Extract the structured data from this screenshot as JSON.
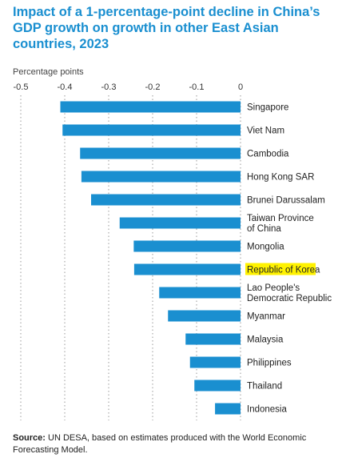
{
  "title": "Impact of a 1-percentage-point decline in China’s GDP growth on growth in other East Asian countries, 2023",
  "source_label": "Source:",
  "source_text": "UN DESA, based on estimates produced with the World Economic Forecasting Model.",
  "colors": {
    "bar": "#1a8fd0",
    "title": "#1a8fd0",
    "highlight": "#fff200"
  },
  "chart_data": {
    "type": "bar",
    "orientation": "horizontal",
    "title": "Impact of a 1-percentage-point decline in China’s GDP growth on growth in other East Asian countries, 2023",
    "xlabel": "Percentage points",
    "ylabel": "",
    "xlim": [
      -0.5,
      0
    ],
    "x_ticks": [
      -0.5,
      -0.4,
      -0.3,
      -0.2,
      -0.1,
      0
    ],
    "x_tick_labels": [
      "-0.5",
      "-0.4",
      "-0.3",
      "-0.2",
      "-0.1",
      "0"
    ],
    "grid": "vertical dotted",
    "highlighted_category": "Republic of Korea",
    "categories": [
      [
        "Singapore"
      ],
      [
        "Viet Nam"
      ],
      [
        "Cambodia"
      ],
      [
        "Hong Kong SAR"
      ],
      [
        "Brunei Darussalam"
      ],
      [
        "Taiwan Province",
        "of China"
      ],
      [
        "Mongolia"
      ],
      [
        "Republic of Korea"
      ],
      [
        "Lao People's",
        "Democratic Republic"
      ],
      [
        "Myanmar"
      ],
      [
        "Malaysia"
      ],
      [
        "Philippines"
      ],
      [
        "Thailand"
      ],
      [
        "Indonesia"
      ]
    ],
    "values": [
      -0.41,
      -0.405,
      -0.365,
      -0.362,
      -0.34,
      -0.275,
      -0.243,
      -0.242,
      -0.185,
      -0.165,
      -0.125,
      -0.115,
      -0.105,
      -0.058
    ]
  }
}
